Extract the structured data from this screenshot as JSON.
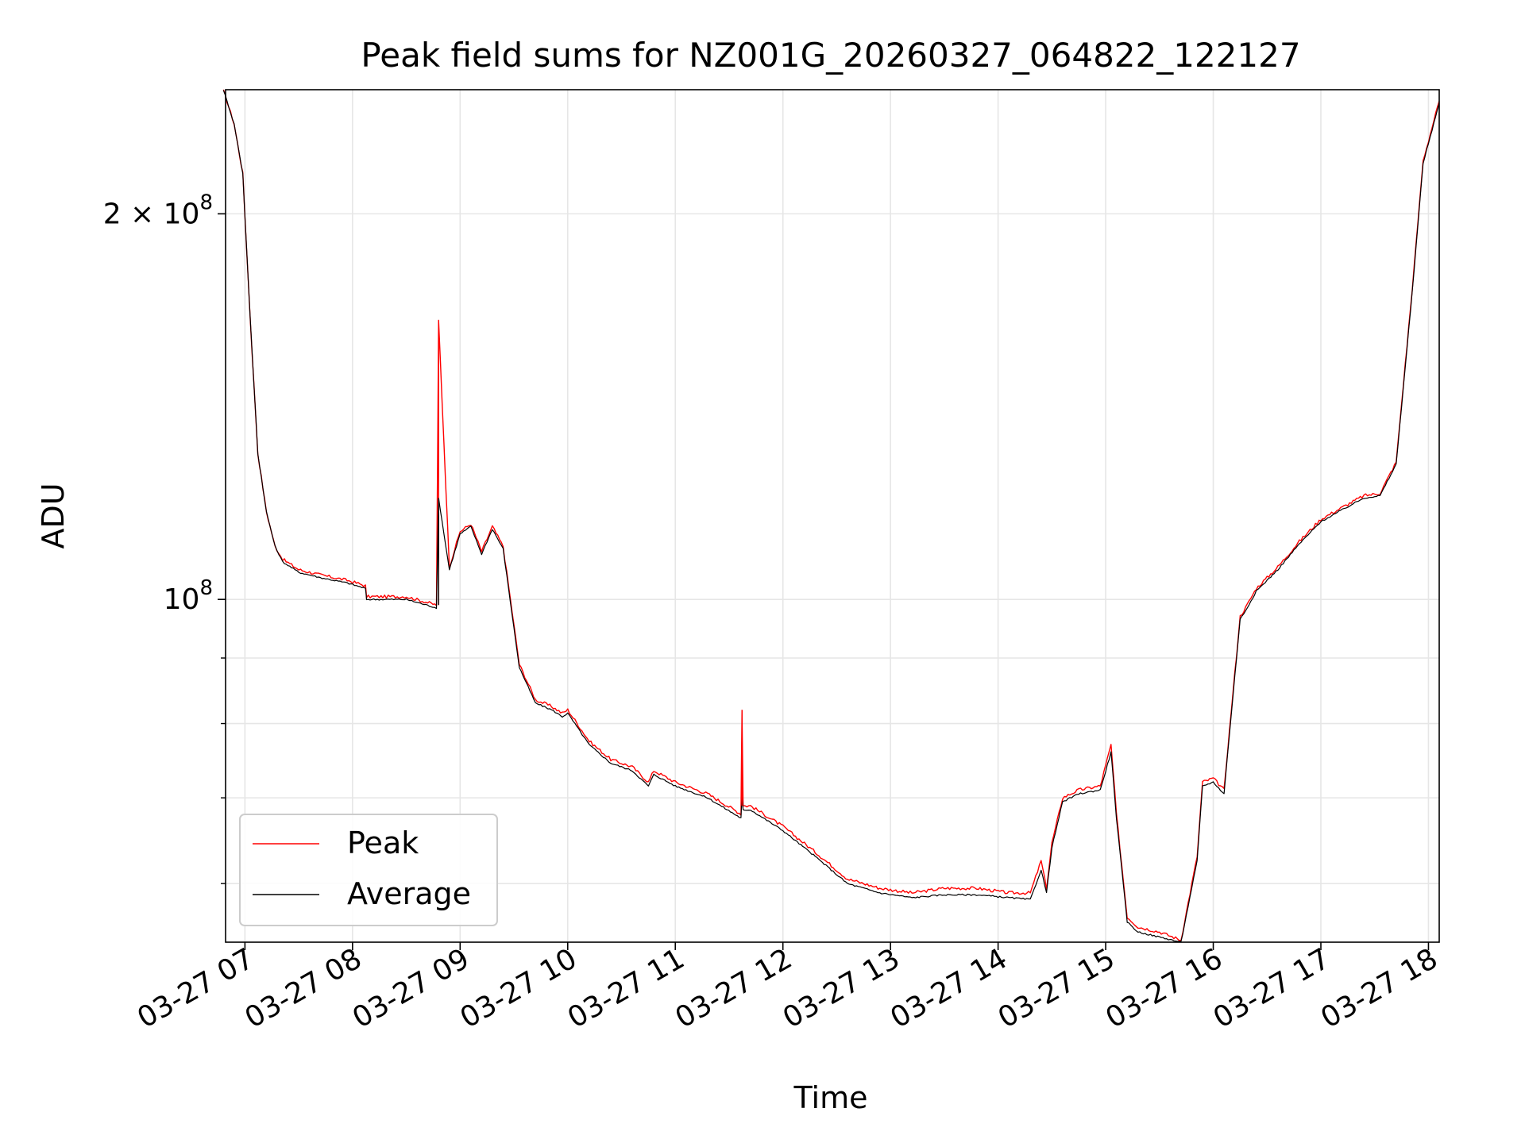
{
  "chart_data": {
    "type": "line",
    "title": "Peak field sums for NZ001G_20260327_064822_122127",
    "xlabel": "Time",
    "ylabel": "ADU",
    "yscale": "log",
    "ylim": [
      54000000,
      250000000
    ],
    "xlim": [
      6.82,
      18.1
    ],
    "grid": true,
    "legend_position": "lower-left",
    "x_ticks": [
      7,
      8,
      9,
      10,
      11,
      12,
      13,
      14,
      15,
      16,
      17,
      18
    ],
    "x_tick_labels": [
      "03-27 07",
      "03-27 08",
      "03-27 09",
      "03-27 10",
      "03-27 11",
      "03-27 12",
      "03-27 13",
      "03-27 14",
      "03-27 15",
      "03-27 16",
      "03-27 17",
      "03-27 18"
    ],
    "y_major_ticks": [
      100000000,
      200000000
    ],
    "y_major_labels": [
      "10",
      "2 × 10"
    ],
    "y_major_exponent": "8",
    "y_minor_ticks": [
      60000000,
      70000000,
      80000000,
      90000000
    ],
    "series": [
      {
        "name": "Peak",
        "color": "#ff0000",
        "x": [
          6.8,
          6.9,
          6.98,
          7.05,
          7.12,
          7.2,
          7.28,
          7.35,
          7.5,
          7.7,
          7.95,
          8.12,
          8.13,
          8.5,
          8.78,
          8.8,
          8.9,
          9.0,
          9.1,
          9.2,
          9.3,
          9.4,
          9.55,
          9.7,
          9.85,
          9.95,
          10.0,
          10.2,
          10.4,
          10.6,
          10.75,
          10.8,
          11.0,
          11.3,
          11.61,
          11.62,
          11.63,
          11.7,
          12.0,
          12.3,
          12.6,
          12.9,
          13.2,
          13.5,
          13.8,
          14.1,
          14.3,
          14.4,
          14.45,
          14.5,
          14.6,
          14.75,
          14.95,
          15.05,
          15.1,
          15.2,
          15.3,
          15.5,
          15.7,
          15.85,
          15.9,
          16.0,
          16.1,
          16.15,
          16.25,
          16.3,
          16.4,
          16.6,
          16.8,
          17.0,
          17.2,
          17.4,
          17.55,
          17.7,
          17.85,
          17.95,
          18.1
        ],
        "y": [
          250000000,
          235000000,
          215000000,
          165000000,
          130000000,
          117000000,
          110000000,
          107500000,
          105500000,
          104500000,
          103500000,
          102500000,
          100500000,
          100500000,
          99000000,
          165000000,
          106000000,
          113000000,
          114500000,
          109000000,
          114000000,
          110000000,
          89000000,
          83500000,
          82500000,
          81500000,
          82000000,
          77500000,
          75000000,
          74000000,
          72000000,
          73500000,
          72000000,
          70500000,
          68000000,
          82000000,
          69000000,
          69000000,
          66500000,
          63500000,
          60500000,
          59500000,
          59000000,
          59500000,
          59500000,
          59000000,
          59000000,
          62500000,
          59500000,
          64500000,
          70000000,
          71000000,
          71500000,
          77000000,
          68000000,
          56500000,
          55500000,
          55000000,
          54200000,
          63000000,
          72000000,
          72500000,
          71000000,
          79000000,
          97000000,
          98500000,
          102000000,
          106000000,
          111000000,
          115500000,
          118000000,
          120500000,
          121000000,
          128000000,
          175000000,
          220000000,
          245000000
        ]
      },
      {
        "name": "Average",
        "color": "#000000",
        "x": [
          6.8,
          6.9,
          6.98,
          7.05,
          7.12,
          7.2,
          7.28,
          7.35,
          7.5,
          7.7,
          7.95,
          8.12,
          8.13,
          8.5,
          8.78,
          8.8,
          8.9,
          9.0,
          9.1,
          9.2,
          9.3,
          9.4,
          9.55,
          9.7,
          9.85,
          9.95,
          10.0,
          10.2,
          10.4,
          10.6,
          10.75,
          10.8,
          11.0,
          11.3,
          11.61,
          11.62,
          11.63,
          11.7,
          12.0,
          12.3,
          12.6,
          12.9,
          13.2,
          13.5,
          13.8,
          14.1,
          14.3,
          14.4,
          14.45,
          14.5,
          14.6,
          14.75,
          14.95,
          15.05,
          15.1,
          15.2,
          15.3,
          15.5,
          15.7,
          15.85,
          15.9,
          16.0,
          16.1,
          16.15,
          16.25,
          16.3,
          16.4,
          16.6,
          16.8,
          17.0,
          17.2,
          17.4,
          17.55,
          17.7,
          17.85,
          17.95,
          18.1
        ],
        "y": [
          250000000,
          235000000,
          215000000,
          165000000,
          130000000,
          117000000,
          110000000,
          107000000,
          105000000,
          104000000,
          103000000,
          102000000,
          100000000,
          100000000,
          98500000,
          120000000,
          105500000,
          112500000,
          114000000,
          108500000,
          113500000,
          109500000,
          88500000,
          83000000,
          82000000,
          81000000,
          81500000,
          77000000,
          74500000,
          73500000,
          71500000,
          73000000,
          71500000,
          70000000,
          67500000,
          70000000,
          68500000,
          68500000,
          66000000,
          63000000,
          60000000,
          59000000,
          58500000,
          58800000,
          58800000,
          58500000,
          58300000,
          61500000,
          59000000,
          64000000,
          69500000,
          70500000,
          71000000,
          76000000,
          67500000,
          56000000,
          55000000,
          54500000,
          54000000,
          62500000,
          71500000,
          72000000,
          70500000,
          78500000,
          96500000,
          98000000,
          101500000,
          105500000,
          110500000,
          115000000,
          117500000,
          120000000,
          120500000,
          127500000,
          174000000,
          219000000,
          244000000
        ]
      }
    ],
    "spikes": [
      {
        "series": "Peak",
        "x": 8.8,
        "y": 165000000
      },
      {
        "series": "Peak",
        "x": 11.62,
        "y": 82000000
      },
      {
        "series": "Average",
        "x": 8.8,
        "y": 120000000
      }
    ]
  }
}
